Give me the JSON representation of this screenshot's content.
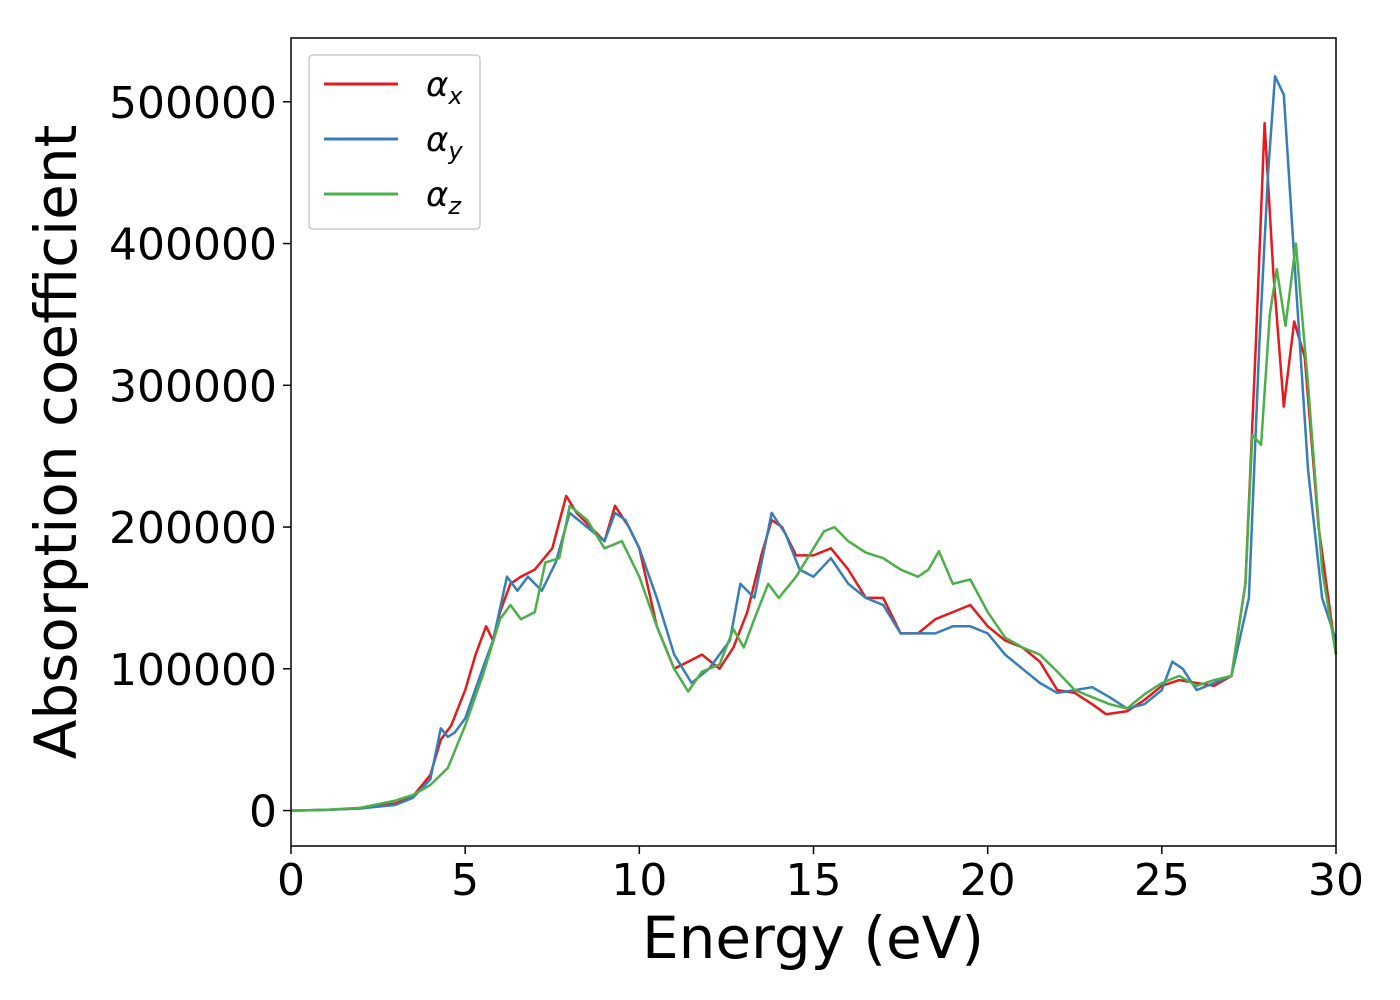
{
  "chart_data": {
    "type": "line",
    "title": "",
    "xlabel": "Energy (eV)",
    "ylabel": "Absorption coefficient",
    "xlim": [
      0,
      30
    ],
    "ylim": [
      -25000,
      545000
    ],
    "xticks": [
      0,
      5,
      10,
      15,
      20,
      25,
      30
    ],
    "yticks": [
      0,
      100000,
      200000,
      300000,
      400000,
      500000
    ],
    "grid": false,
    "legend_position": "top-left",
    "series": [
      {
        "name": "α_x",
        "label_main": "α",
        "label_sub": "x",
        "color": "#e41a1c",
        "x": [
          0,
          1,
          2,
          3,
          3.5,
          4,
          4.3,
          4.6,
          5,
          5.3,
          5.6,
          5.8,
          6,
          6.3,
          6.6,
          7,
          7.5,
          7.9,
          8.2,
          8.6,
          9,
          9.3,
          9.7,
          10,
          10.5,
          11,
          11.4,
          11.8,
          12.3,
          12.7,
          13.1,
          13.5,
          13.8,
          14.1,
          14.5,
          15,
          15.5,
          16,
          16.5,
          17,
          17.5,
          18,
          18.5,
          19,
          19.5,
          20,
          20.5,
          21,
          21.5,
          22,
          22.5,
          23,
          23.4,
          24,
          24.5,
          25,
          25.5,
          26,
          26.5,
          27,
          27.4,
          27.7,
          27.95,
          28.2,
          28.5,
          28.8,
          29.1,
          29.5,
          30
        ],
        "values": [
          0,
          500,
          1500,
          5000,
          10000,
          25000,
          50000,
          60000,
          85000,
          110000,
          130000,
          120000,
          140000,
          160000,
          165000,
          170000,
          185000,
          222000,
          210000,
          200000,
          190000,
          215000,
          200000,
          185000,
          130000,
          100000,
          105000,
          110000,
          100000,
          115000,
          140000,
          180000,
          205000,
          200000,
          180000,
          180000,
          185000,
          170000,
          150000,
          150000,
          125000,
          125000,
          135000,
          140000,
          145000,
          130000,
          120000,
          115000,
          105000,
          85000,
          83000,
          75000,
          68000,
          70000,
          78000,
          88000,
          92000,
          90000,
          88000,
          95000,
          160000,
          330000,
          485000,
          380000,
          285000,
          345000,
          320000,
          200000,
          110000
        ]
      },
      {
        "name": "α_y",
        "label_main": "α",
        "label_sub": "y",
        "color": "#377eb8",
        "x": [
          0,
          1,
          2,
          3,
          3.5,
          4,
          4.3,
          4.5,
          4.7,
          5,
          5.5,
          5.8,
          6.2,
          6.5,
          6.8,
          7.2,
          7.6,
          8,
          8.5,
          9,
          9.3,
          9.6,
          10,
          10.5,
          11,
          11.5,
          12,
          12.6,
          12.9,
          13.3,
          13.8,
          14.2,
          14.6,
          15,
          15.5,
          16,
          16.5,
          17,
          17.5,
          18,
          18.5,
          19,
          19.5,
          20,
          20.5,
          21,
          21.5,
          22,
          22.5,
          23,
          23.5,
          24,
          24.5,
          25,
          25.3,
          25.6,
          26,
          26.5,
          27,
          27.5,
          27.8,
          28.05,
          28.25,
          28.5,
          28.8,
          29.2,
          29.6,
          30
        ],
        "values": [
          0,
          500,
          1500,
          4000,
          9000,
          22000,
          58000,
          52000,
          55000,
          65000,
          100000,
          120000,
          165000,
          155000,
          165000,
          155000,
          175000,
          210000,
          200000,
          190000,
          210000,
          205000,
          185000,
          150000,
          110000,
          90000,
          100000,
          120000,
          160000,
          150000,
          210000,
          195000,
          170000,
          165000,
          178000,
          160000,
          150000,
          145000,
          125000,
          125000,
          125000,
          130000,
          130000,
          125000,
          110000,
          100000,
          90000,
          83000,
          85000,
          87000,
          80000,
          72000,
          75000,
          85000,
          105000,
          100000,
          85000,
          90000,
          95000,
          150000,
          330000,
          450000,
          518000,
          505000,
          390000,
          240000,
          150000,
          120000
        ]
      },
      {
        "name": "α_z",
        "label_main": "α",
        "label_sub": "z",
        "color": "#4daf4a",
        "x": [
          0,
          1,
          2,
          3,
          3.5,
          4,
          4.5,
          5,
          5.5,
          6,
          6.3,
          6.6,
          7,
          7.3,
          7.7,
          8,
          8.5,
          9,
          9.5,
          10,
          10.5,
          11,
          11.4,
          11.8,
          12.3,
          12.7,
          13,
          13.3,
          13.7,
          14,
          14.5,
          15,
          15.3,
          15.6,
          16,
          16.5,
          17,
          17.5,
          18,
          18.3,
          18.6,
          19,
          19.5,
          20,
          20.5,
          21,
          21.5,
          22,
          22.5,
          23,
          23.5,
          24,
          24.5,
          25,
          25.5,
          26,
          26.5,
          27,
          27.4,
          27.6,
          27.85,
          28.1,
          28.3,
          28.55,
          28.85,
          29.2,
          29.6,
          30
        ],
        "values": [
          0,
          500,
          2000,
          7000,
          11000,
          18000,
          30000,
          60000,
          95000,
          135000,
          145000,
          135000,
          140000,
          175000,
          178000,
          215000,
          205000,
          185000,
          190000,
          165000,
          130000,
          100000,
          84000,
          98000,
          103000,
          128000,
          115000,
          135000,
          160000,
          150000,
          165000,
          185000,
          197000,
          200000,
          190000,
          182000,
          178000,
          170000,
          165000,
          170000,
          183000,
          160000,
          163000,
          140000,
          122000,
          115000,
          110000,
          98000,
          85000,
          80000,
          75000,
          72000,
          82000,
          90000,
          95000,
          88000,
          92000,
          95000,
          160000,
          265000,
          258000,
          350000,
          382000,
          342000,
          400000,
          300000,
          170000,
          110000
        ]
      }
    ]
  }
}
